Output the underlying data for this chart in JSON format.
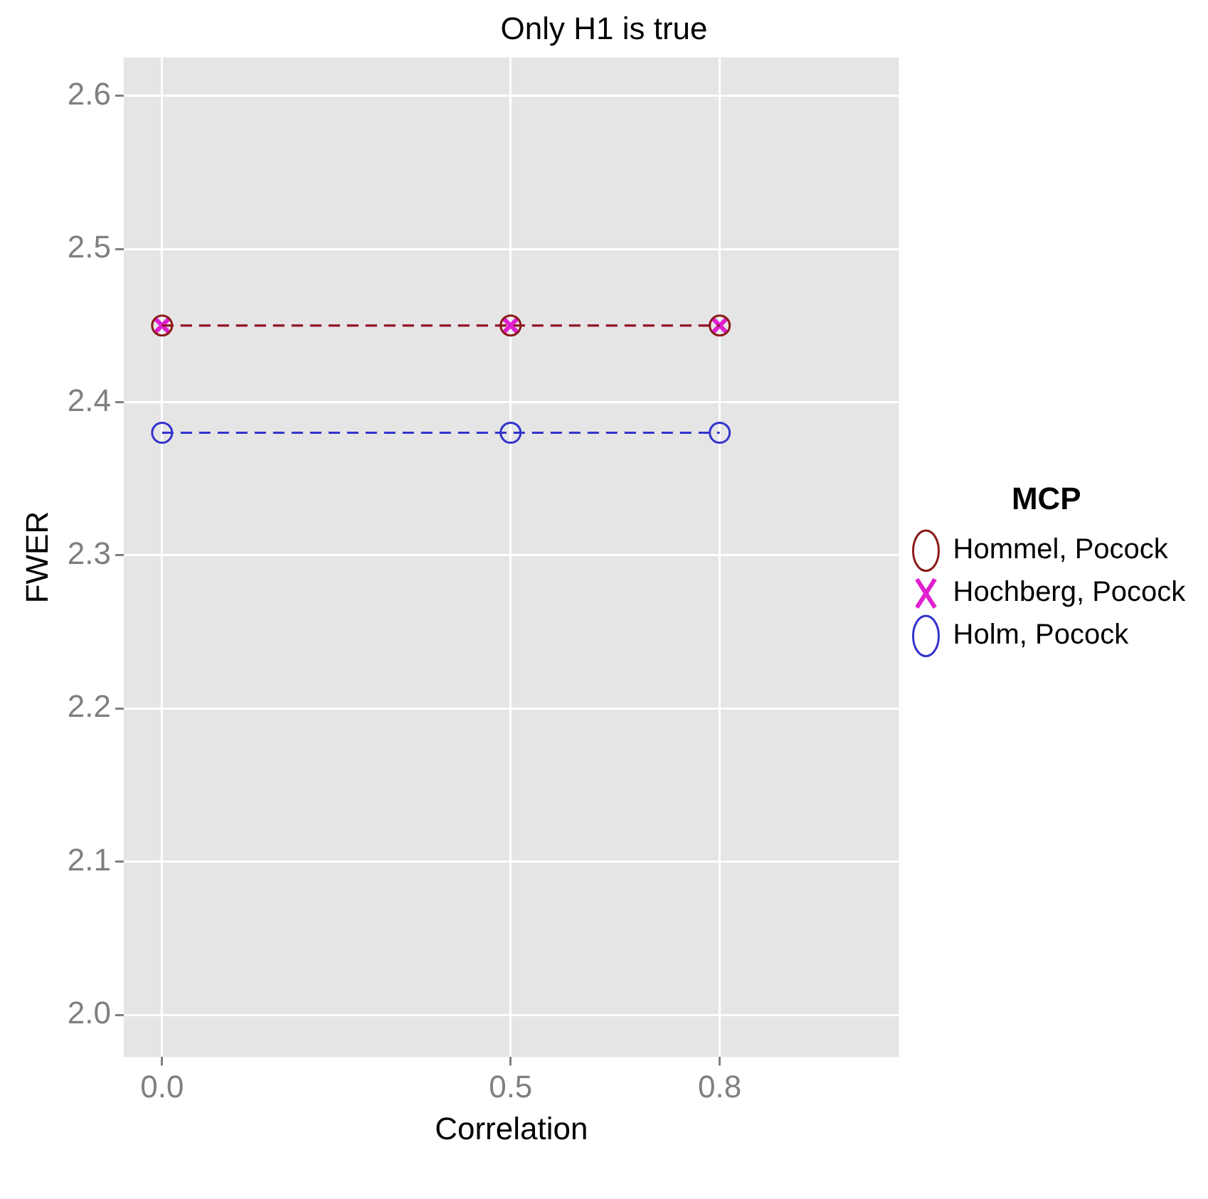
{
  "chart_data": {
    "type": "line",
    "title": "Only H1 is true",
    "xlabel": "Correlation",
    "ylabel": "FWER",
    "legend_title": "MCP",
    "x": [
      0,
      0.5,
      0.8
    ],
    "series": [
      {
        "name": "Hommel, Pocock",
        "color": "#8b1a1a",
        "values": [
          2.45,
          2.45,
          2.45
        ],
        "marker": "circle"
      },
      {
        "name": "Hochberg, Pocock",
        "color": "#e020d0",
        "values": [
          2.45,
          2.45,
          2.45
        ],
        "marker": "cross"
      },
      {
        "name": "Holm, Pocock",
        "color": "#3333cc",
        "values": [
          2.38,
          2.38,
          2.38
        ],
        "marker": "circle"
      }
    ],
    "xlim": [
      -0.055,
      1.057
    ],
    "xticks": [
      {
        "value": 0,
        "label": "0.0"
      },
      0.5,
      0.8
    ],
    "ylim": [
      1.9725,
      2.625
    ],
    "yticks": [
      {
        "value": 2,
        "label": "2.0"
      },
      2.1,
      2.2,
      2.3,
      2.4,
      2.5,
      2.6
    ],
    "grid": true,
    "legend": "right",
    "line_style": "dashed"
  }
}
